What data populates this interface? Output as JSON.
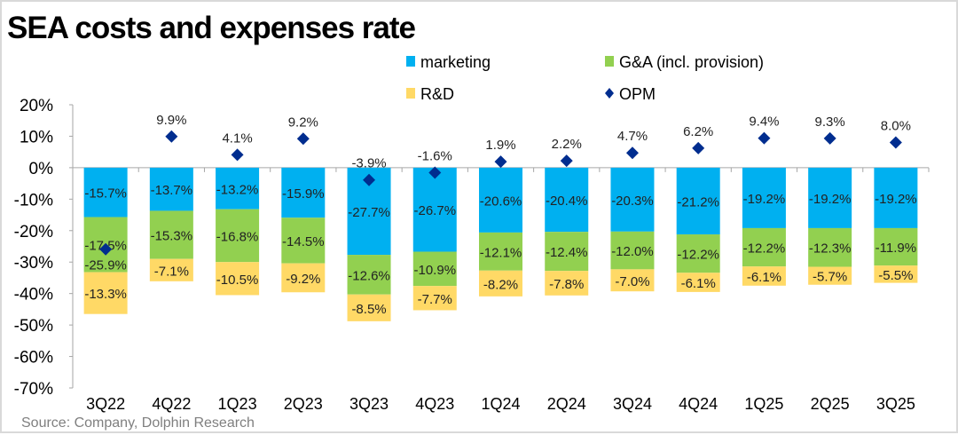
{
  "chart_data": {
    "type": "bar",
    "stacked": true,
    "title": "SEA costs and expenses rate",
    "source": "Source: Company, Dolphin Research",
    "categories": [
      "3Q22",
      "4Q22",
      "1Q23",
      "2Q23",
      "3Q23",
      "4Q23",
      "1Q24",
      "2Q24",
      "3Q24",
      "4Q24",
      "1Q25",
      "2Q25",
      "3Q25"
    ],
    "series": [
      {
        "name": "marketing",
        "kind": "bar",
        "color": "#00b0f0",
        "values": [
          -15.7,
          -13.7,
          -13.2,
          -15.9,
          -27.7,
          -26.7,
          -20.6,
          -20.4,
          -20.3,
          -21.2,
          -19.2,
          -19.2,
          -19.2
        ]
      },
      {
        "name": "G&A (incl. provision)",
        "kind": "bar",
        "color": "#92d050",
        "values": [
          -17.5,
          -15.3,
          -16.8,
          -14.5,
          -12.6,
          -10.9,
          -12.1,
          -12.4,
          -12.0,
          -12.2,
          -12.2,
          -12.3,
          -11.9
        ]
      },
      {
        "name": "R&D",
        "kind": "bar",
        "color": "#ffd966",
        "values": [
          -13.3,
          -7.1,
          -10.5,
          -9.2,
          -8.5,
          -7.7,
          -8.2,
          -7.8,
          -7.0,
          -6.1,
          -6.1,
          -5.7,
          -5.5
        ]
      },
      {
        "name": "OPM",
        "kind": "scatter",
        "marker": "diamond",
        "color": "#002d8f",
        "values": [
          -25.9,
          9.9,
          4.1,
          9.2,
          -3.9,
          -1.6,
          1.9,
          2.2,
          4.7,
          6.2,
          9.4,
          9.3,
          8.0
        ]
      }
    ],
    "yticks": [
      "20%",
      "10%",
      "0%",
      "-10%",
      "-20%",
      "-30%",
      "-40%",
      "-50%",
      "-60%",
      "-70%"
    ],
    "ylim": [
      -70,
      20
    ],
    "grid": false,
    "legend": "top"
  }
}
